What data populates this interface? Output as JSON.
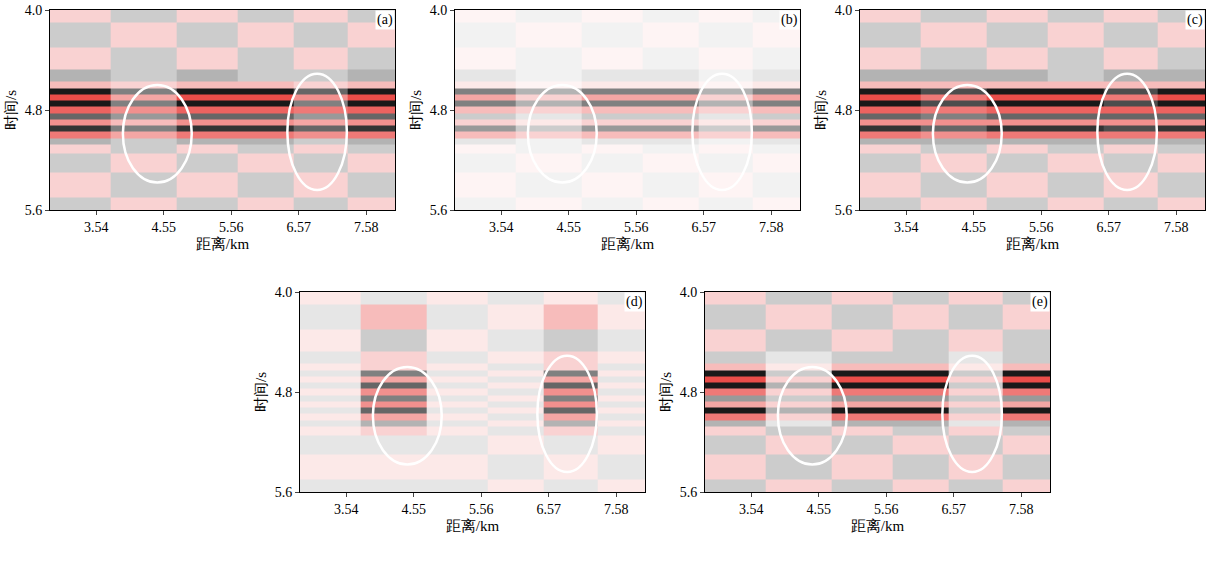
{
  "chart_data": [
    {
      "type": "heatmap",
      "title": "(a)",
      "xlabel": "距离/km",
      "ylabel": "时间/s",
      "xlim": [
        2.85,
        8.01
      ],
      "ylim": [
        5.6,
        4.0
      ],
      "xticks": [
        3.54,
        4.55,
        5.56,
        6.57,
        7.58
      ],
      "yticks": [
        {
          "value": 4.0,
          "label": "4.0"
        },
        4.8,
        5.6
      ],
      "zlim": [
        -1,
        1
      ],
      "ellipses": [
        {
          "x": [
            3.94,
            4.97
          ],
          "y": [
            4.6,
            5.38
          ]
        },
        {
          "x": [
            6.4,
            7.29
          ],
          "y": [
            4.51,
            5.44
          ]
        }
      ],
      "x": [
        3.2,
        4.3,
        5.2,
        6.1,
        6.9,
        7.7
      ],
      "y": [
        4.0,
        4.2,
        4.4,
        4.55,
        4.6,
        4.65,
        4.7,
        4.75,
        4.8,
        4.85,
        4.9,
        4.95,
        5.0,
        5.05,
        5.1,
        5.2,
        5.4,
        5.6
      ],
      "z": [
        [
          0.2,
          -0.2,
          0.2,
          -0.2,
          0.2,
          -0.2
        ],
        [
          -0.2,
          0.2,
          -0.2,
          0.2,
          -0.2,
          0.2
        ],
        [
          0.2,
          -0.2,
          0.2,
          -0.2,
          0.2,
          -0.2
        ],
        [
          -0.3,
          -0.2,
          -0.3,
          -0.2,
          -0.2,
          -0.3
        ],
        [
          0.3,
          0.2,
          0.3,
          0.3,
          0.2,
          0.3
        ],
        [
          -0.9,
          -0.5,
          -0.9,
          -0.9,
          -0.6,
          -0.9
        ],
        [
          0.8,
          0.4,
          0.8,
          0.8,
          0.5,
          0.8
        ],
        [
          -0.9,
          -0.5,
          -0.9,
          -0.9,
          -0.5,
          -0.9
        ],
        [
          0.7,
          0.5,
          0.7,
          0.7,
          0.6,
          0.7
        ],
        [
          -0.6,
          -0.4,
          -0.6,
          -0.6,
          -0.4,
          -0.6
        ],
        [
          0.5,
          0.3,
          0.5,
          0.5,
          0.4,
          0.5
        ],
        [
          -0.8,
          -0.5,
          -0.8,
          -0.8,
          -0.6,
          -0.8
        ],
        [
          0.6,
          0.4,
          0.6,
          0.6,
          0.5,
          0.6
        ],
        [
          -0.3,
          -0.2,
          -0.3,
          -0.3,
          -0.2,
          -0.3
        ],
        [
          0.2,
          -0.2,
          0.2,
          -0.2,
          0.2,
          -0.2
        ],
        [
          -0.2,
          0.2,
          -0.2,
          0.2,
          -0.2,
          0.2
        ],
        [
          0.2,
          -0.2,
          0.2,
          -0.2,
          0.2,
          -0.2
        ],
        [
          -0.2,
          0.2,
          -0.2,
          0.2,
          -0.2,
          0.2
        ]
      ]
    },
    {
      "type": "heatmap",
      "title": "(b)",
      "xlabel": "距离/km",
      "ylabel": "时间/s",
      "xlim": [
        2.85,
        8.01
      ],
      "ylim": [
        5.6,
        4.0
      ],
      "xticks": [
        3.54,
        4.55,
        5.56,
        6.57,
        7.58
      ],
      "yticks": [
        {
          "value": 4.0,
          "label": "4.0"
        },
        4.8,
        5.6
      ],
      "zlim": [
        -1,
        1
      ],
      "ellipses": [
        {
          "x": [
            3.94,
            4.97
          ],
          "y": [
            4.6,
            5.38
          ]
        },
        {
          "x": [
            6.4,
            7.29
          ],
          "y": [
            4.51,
            5.44
          ]
        }
      ],
      "x": [
        3.2,
        4.3,
        5.2,
        6.1,
        6.9,
        7.7
      ],
      "y": [
        4.0,
        4.2,
        4.4,
        4.55,
        4.6,
        4.65,
        4.7,
        4.75,
        4.8,
        4.85,
        4.9,
        4.95,
        5.0,
        5.05,
        5.1,
        5.2,
        5.4,
        5.6
      ],
      "z": [
        [
          0.05,
          -0.05,
          0.05,
          -0.05,
          0.05,
          -0.05
        ],
        [
          -0.05,
          0.05,
          -0.05,
          0.05,
          -0.05,
          0.05
        ],
        [
          0.05,
          -0.05,
          0.05,
          -0.05,
          0.05,
          -0.05
        ],
        [
          -0.1,
          -0.05,
          -0.1,
          -0.1,
          -0.05,
          -0.1
        ],
        [
          0.1,
          0.05,
          0.1,
          0.1,
          0.05,
          0.1
        ],
        [
          -0.5,
          -0.3,
          -0.5,
          -0.5,
          -0.3,
          -0.5
        ],
        [
          0.4,
          0.2,
          0.4,
          0.4,
          0.2,
          0.4
        ],
        [
          -0.5,
          -0.3,
          -0.5,
          -0.5,
          -0.3,
          -0.5
        ],
        [
          0.3,
          0.2,
          0.3,
          0.3,
          0.2,
          0.3
        ],
        [
          -0.2,
          -0.1,
          -0.2,
          -0.2,
          -0.1,
          -0.2
        ],
        [
          0.2,
          0.1,
          0.2,
          0.2,
          0.1,
          0.2
        ],
        [
          -0.4,
          -0.2,
          -0.4,
          -0.4,
          -0.2,
          -0.4
        ],
        [
          0.3,
          0.2,
          0.3,
          0.3,
          0.2,
          0.3
        ],
        [
          -0.1,
          -0.05,
          -0.1,
          -0.1,
          -0.05,
          -0.1
        ],
        [
          0.05,
          -0.05,
          0.05,
          -0.05,
          0.05,
          -0.05
        ],
        [
          -0.05,
          0.05,
          -0.05,
          0.05,
          -0.05,
          0.05
        ],
        [
          0.05,
          -0.05,
          0.05,
          -0.05,
          0.05,
          -0.05
        ],
        [
          -0.05,
          0.05,
          -0.05,
          0.05,
          -0.05,
          0.05
        ]
      ]
    },
    {
      "type": "heatmap",
      "title": "(c)",
      "xlabel": "距离/km",
      "ylabel": "时间/s",
      "xlim": [
        2.85,
        8.01
      ],
      "ylim": [
        5.6,
        4.0
      ],
      "xticks": [
        3.54,
        4.55,
        5.56,
        6.57,
        7.58
      ],
      "yticks": [
        {
          "value": 4.0,
          "label": "4.0"
        },
        4.8,
        5.6
      ],
      "zlim": [
        -1,
        1
      ],
      "ellipses": [
        {
          "x": [
            3.94,
            4.97
          ],
          "y": [
            4.6,
            5.38
          ]
        },
        {
          "x": [
            6.4,
            7.29
          ],
          "y": [
            4.51,
            5.44
          ]
        }
      ],
      "x": [
        3.2,
        4.3,
        5.2,
        6.1,
        6.9,
        7.7
      ],
      "y": [
        4.0,
        4.2,
        4.4,
        4.55,
        4.6,
        4.65,
        4.7,
        4.75,
        4.8,
        4.85,
        4.9,
        4.95,
        5.0,
        5.05,
        5.1,
        5.2,
        5.4,
        5.6
      ],
      "z": [
        [
          0.2,
          -0.2,
          0.2,
          -0.2,
          0.2,
          -0.2
        ],
        [
          -0.2,
          0.2,
          -0.2,
          0.2,
          -0.2,
          0.2
        ],
        [
          0.2,
          -0.2,
          0.2,
          -0.2,
          0.2,
          -0.2
        ],
        [
          -0.3,
          -0.3,
          -0.3,
          -0.2,
          -0.3,
          -0.3
        ],
        [
          0.3,
          0.3,
          0.3,
          0.3,
          0.3,
          0.3
        ],
        [
          -0.9,
          -0.7,
          -0.9,
          -0.9,
          -0.7,
          -0.9
        ],
        [
          0.8,
          0.6,
          0.8,
          0.8,
          0.6,
          0.8
        ],
        [
          -0.9,
          -0.7,
          -0.9,
          -0.9,
          -0.7,
          -0.9
        ],
        [
          0.7,
          0.6,
          0.7,
          0.7,
          0.7,
          0.7
        ],
        [
          -0.6,
          -0.5,
          -0.6,
          -0.6,
          -0.6,
          -0.6
        ],
        [
          0.5,
          0.5,
          0.5,
          0.5,
          0.5,
          0.5
        ],
        [
          -0.8,
          -0.6,
          -0.8,
          -0.8,
          -0.7,
          -0.8
        ],
        [
          0.6,
          0.5,
          0.6,
          0.6,
          0.6,
          0.6
        ],
        [
          -0.3,
          -0.3,
          -0.3,
          -0.3,
          -0.3,
          -0.3
        ],
        [
          0.2,
          -0.2,
          0.2,
          -0.2,
          0.2,
          -0.2
        ],
        [
          -0.2,
          0.2,
          -0.2,
          0.2,
          -0.2,
          0.2
        ],
        [
          0.2,
          -0.2,
          0.2,
          -0.2,
          0.2,
          -0.2
        ],
        [
          -0.2,
          0.2,
          -0.2,
          0.2,
          -0.2,
          0.2
        ]
      ]
    },
    {
      "type": "heatmap",
      "title": "(d)",
      "xlabel": "距离/km",
      "ylabel": "时间/s",
      "xlim": [
        2.85,
        8.01
      ],
      "ylim": [
        5.6,
        4.0
      ],
      "xticks": [
        3.54,
        4.55,
        5.56,
        6.57,
        7.58
      ],
      "yticks": [
        {
          "value": 4.0,
          "label": "4.0"
        },
        4.8,
        5.6
      ],
      "zlim": [
        -1,
        1
      ],
      "ellipses": [
        {
          "x": [
            3.94,
            4.97
          ],
          "y": [
            4.6,
            5.38
          ]
        },
        {
          "x": [
            6.4,
            7.29
          ],
          "y": [
            4.51,
            5.44
          ]
        }
      ],
      "x": [
        3.2,
        4.3,
        5.2,
        6.1,
        6.9,
        7.7
      ],
      "y": [
        4.0,
        4.2,
        4.4,
        4.55,
        4.6,
        4.65,
        4.7,
        4.75,
        4.8,
        4.85,
        4.9,
        4.95,
        5.0,
        5.05,
        5.1,
        5.2,
        5.4,
        5.6
      ],
      "z": [
        [
          0.1,
          -0.1,
          0.1,
          -0.1,
          0.1,
          -0.1
        ],
        [
          -0.1,
          0.3,
          -0.1,
          0.1,
          0.3,
          0.1
        ],
        [
          0.1,
          -0.2,
          0.1,
          -0.1,
          -0.2,
          -0.1
        ],
        [
          -0.1,
          0.2,
          -0.1,
          0.1,
          0.2,
          0.1
        ],
        [
          0.1,
          0.2,
          0.1,
          -0.1,
          0.2,
          -0.1
        ],
        [
          -0.1,
          -0.5,
          -0.1,
          0.1,
          -0.5,
          0.1
        ],
        [
          0.1,
          0.4,
          0.1,
          -0.1,
          0.4,
          -0.1
        ],
        [
          -0.1,
          -0.6,
          -0.1,
          0.1,
          -0.6,
          0.1
        ],
        [
          0.1,
          0.5,
          0.1,
          -0.1,
          0.5,
          -0.1
        ],
        [
          -0.1,
          -0.5,
          -0.1,
          0.1,
          -0.5,
          0.1
        ],
        [
          0.1,
          0.5,
          0.1,
          -0.1,
          0.5,
          -0.1
        ],
        [
          -0.1,
          -0.6,
          -0.1,
          0.1,
          -0.6,
          0.1
        ],
        [
          0.1,
          0.4,
          0.1,
          -0.1,
          0.4,
          -0.1
        ],
        [
          -0.1,
          -0.3,
          -0.1,
          0.1,
          -0.3,
          0.1
        ],
        [
          0.1,
          0.2,
          0.1,
          -0.1,
          0.2,
          -0.1
        ],
        [
          -0.1,
          -0.1,
          -0.1,
          0.1,
          -0.1,
          0.1
        ],
        [
          0.1,
          0.1,
          0.1,
          -0.1,
          0.1,
          -0.1
        ],
        [
          -0.1,
          -0.1,
          -0.1,
          0.1,
          -0.1,
          0.1
        ]
      ]
    },
    {
      "type": "heatmap",
      "title": "(e)",
      "xlabel": "距离/km",
      "ylabel": "时间/s",
      "xlim": [
        2.85,
        8.01
      ],
      "ylim": [
        5.6,
        4.0
      ],
      "xticks": [
        3.54,
        4.55,
        5.56,
        6.57,
        7.58
      ],
      "yticks": [
        {
          "value": 4.0,
          "label": "4.0"
        },
        4.8,
        5.6
      ],
      "zlim": [
        -1,
        1
      ],
      "ellipses": [
        {
          "x": [
            3.94,
            4.97
          ],
          "y": [
            4.6,
            5.38
          ]
        },
        {
          "x": [
            6.4,
            7.29
          ],
          "y": [
            4.51,
            5.44
          ]
        }
      ],
      "x": [
        3.2,
        4.3,
        5.2,
        6.1,
        6.9,
        7.7
      ],
      "y": [
        4.0,
        4.2,
        4.4,
        4.55,
        4.6,
        4.65,
        4.7,
        4.75,
        4.8,
        4.85,
        4.9,
        4.95,
        5.0,
        5.05,
        5.1,
        5.2,
        5.4,
        5.6
      ],
      "z": [
        [
          0.2,
          -0.2,
          0.2,
          -0.2,
          0.2,
          -0.2
        ],
        [
          -0.2,
          0.2,
          -0.2,
          0.2,
          -0.2,
          0.2
        ],
        [
          0.2,
          -0.2,
          0.2,
          -0.2,
          0.2,
          -0.2
        ],
        [
          -0.2,
          -0.1,
          -0.2,
          -0.2,
          -0.1,
          -0.2
        ],
        [
          0.3,
          0.1,
          0.3,
          0.3,
          0.1,
          0.3
        ],
        [
          -0.9,
          -0.2,
          -0.9,
          -0.9,
          -0.2,
          -0.9
        ],
        [
          0.8,
          0.2,
          0.8,
          0.8,
          0.2,
          0.8
        ],
        [
          -0.9,
          -0.3,
          -0.9,
          -0.9,
          -0.2,
          -0.9
        ],
        [
          0.6,
          0.2,
          0.6,
          0.6,
          0.2,
          0.6
        ],
        [
          -0.4,
          -0.2,
          -0.4,
          -0.4,
          -0.2,
          -0.4
        ],
        [
          0.4,
          0.2,
          0.4,
          0.4,
          0.2,
          0.4
        ],
        [
          -0.9,
          -0.3,
          -0.9,
          -0.9,
          -0.2,
          -0.9
        ],
        [
          0.6,
          0.2,
          0.6,
          0.6,
          0.2,
          0.6
        ],
        [
          -0.3,
          -0.1,
          -0.3,
          -0.3,
          -0.1,
          -0.3
        ],
        [
          0.2,
          -0.2,
          0.2,
          -0.2,
          0.2,
          -0.2
        ],
        [
          -0.2,
          0.2,
          -0.2,
          0.2,
          -0.2,
          0.2
        ],
        [
          0.2,
          -0.2,
          0.2,
          -0.2,
          0.2,
          -0.2
        ],
        [
          -0.2,
          0.2,
          -0.2,
          0.2,
          -0.2,
          0.2
        ]
      ]
    }
  ]
}
